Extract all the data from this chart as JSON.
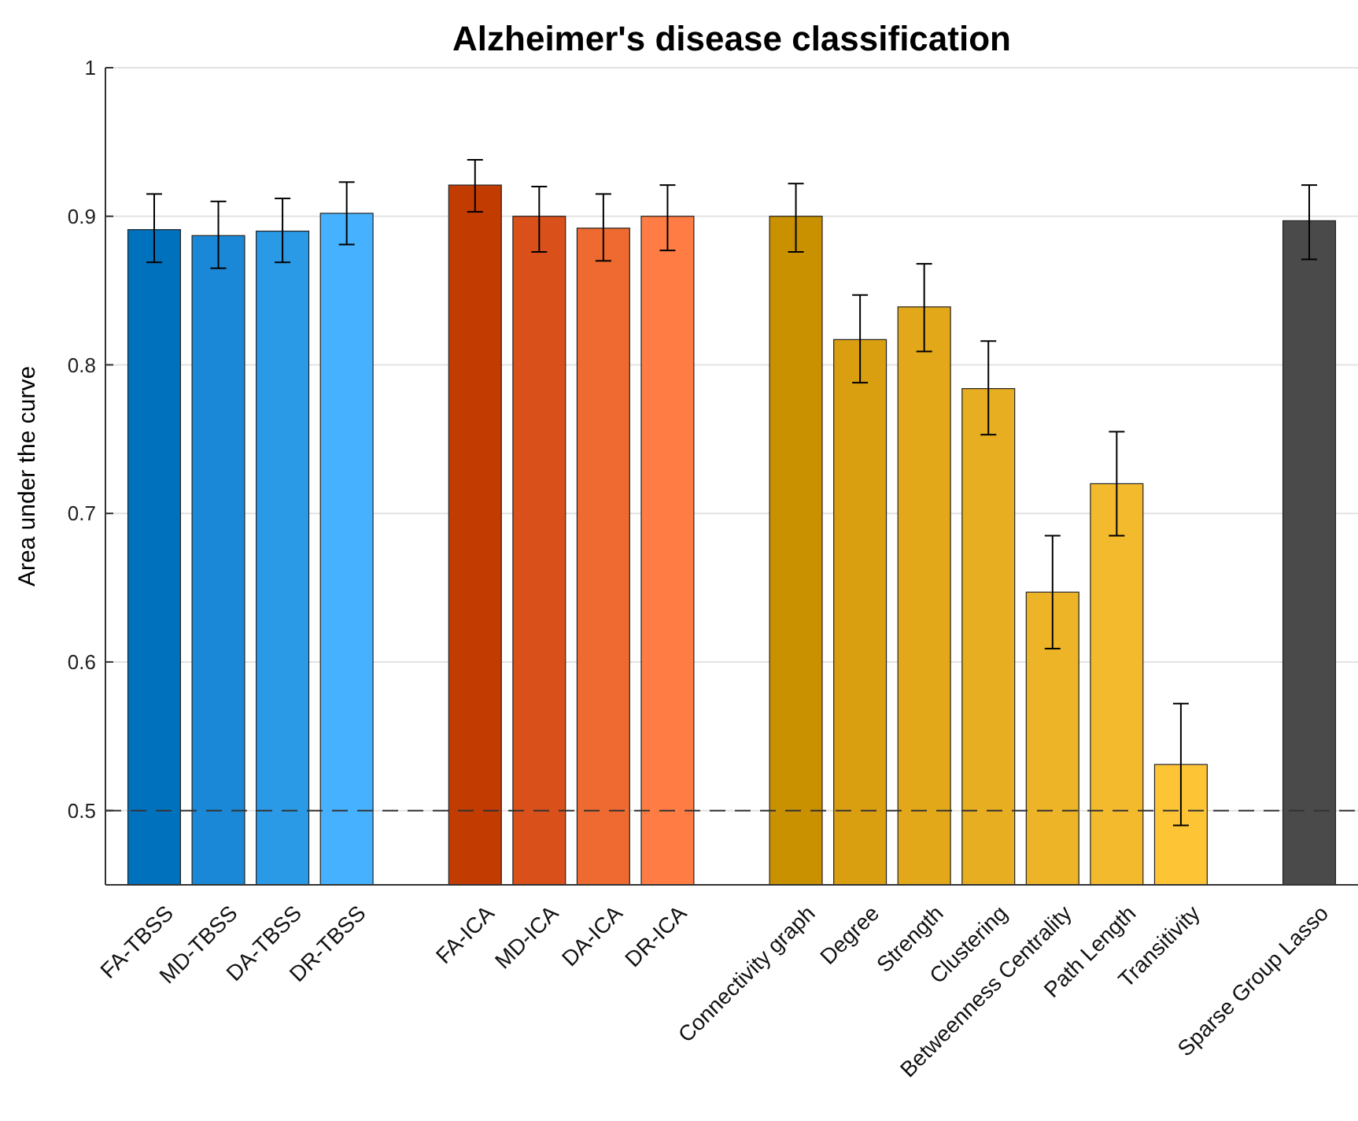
{
  "chart_data": {
    "type": "bar",
    "title": "Alzheimer's disease classification",
    "ylabel": "Area under the curve",
    "categories": [
      "FA-TBSS",
      "MD-TBSS",
      "DA-TBSS",
      "DR-TBSS",
      null,
      "FA-ICA",
      "MD-ICA",
      "DA-ICA",
      "DR-ICA",
      null,
      "Connectivity graph",
      "Degree",
      "Strength",
      "Clustering",
      "Betweenness Centrality",
      "Path Length",
      "Transitivity",
      null,
      "Sparse Group Lasso"
    ],
    "values": [
      0.891,
      0.887,
      0.89,
      0.902,
      null,
      0.921,
      0.9,
      0.892,
      0.9,
      null,
      0.9,
      0.817,
      0.839,
      0.784,
      0.647,
      0.72,
      0.531,
      null,
      0.897
    ],
    "errors": [
      [
        0.869,
        0.915
      ],
      [
        0.865,
        0.91
      ],
      [
        0.869,
        0.912
      ],
      [
        0.881,
        0.923
      ],
      null,
      [
        0.903,
        0.938
      ],
      [
        0.876,
        0.92
      ],
      [
        0.87,
        0.915
      ],
      [
        0.877,
        0.921
      ],
      null,
      [
        0.876,
        0.922
      ],
      [
        0.788,
        0.847
      ],
      [
        0.809,
        0.868
      ],
      [
        0.753,
        0.816
      ],
      [
        0.609,
        0.685
      ],
      [
        0.685,
        0.755
      ],
      [
        0.49,
        0.572
      ],
      null,
      [
        0.871,
        0.921
      ]
    ],
    "colors": [
      "#0072bd",
      "#1a88d6",
      "#2a9ae6",
      "#45b1ff",
      null,
      "#c23b00",
      "#d9501a",
      "#ee6a30",
      "#ff7d45",
      null,
      "#c99000",
      "#d99f10",
      "#e2a81a",
      "#e8ae22",
      "#eeb428",
      "#f4ba2e",
      "#fdc435",
      null,
      "#4a4a4a"
    ],
    "ylim": [
      0.45,
      1
    ],
    "yticks": [
      0.5,
      0.6,
      0.7,
      0.8,
      0.9,
      1
    ],
    "grid": "y",
    "ref_lines": [
      {
        "axis": "y",
        "value": 0.5,
        "line_style": "dashed",
        "color": "#333333"
      }
    ]
  }
}
